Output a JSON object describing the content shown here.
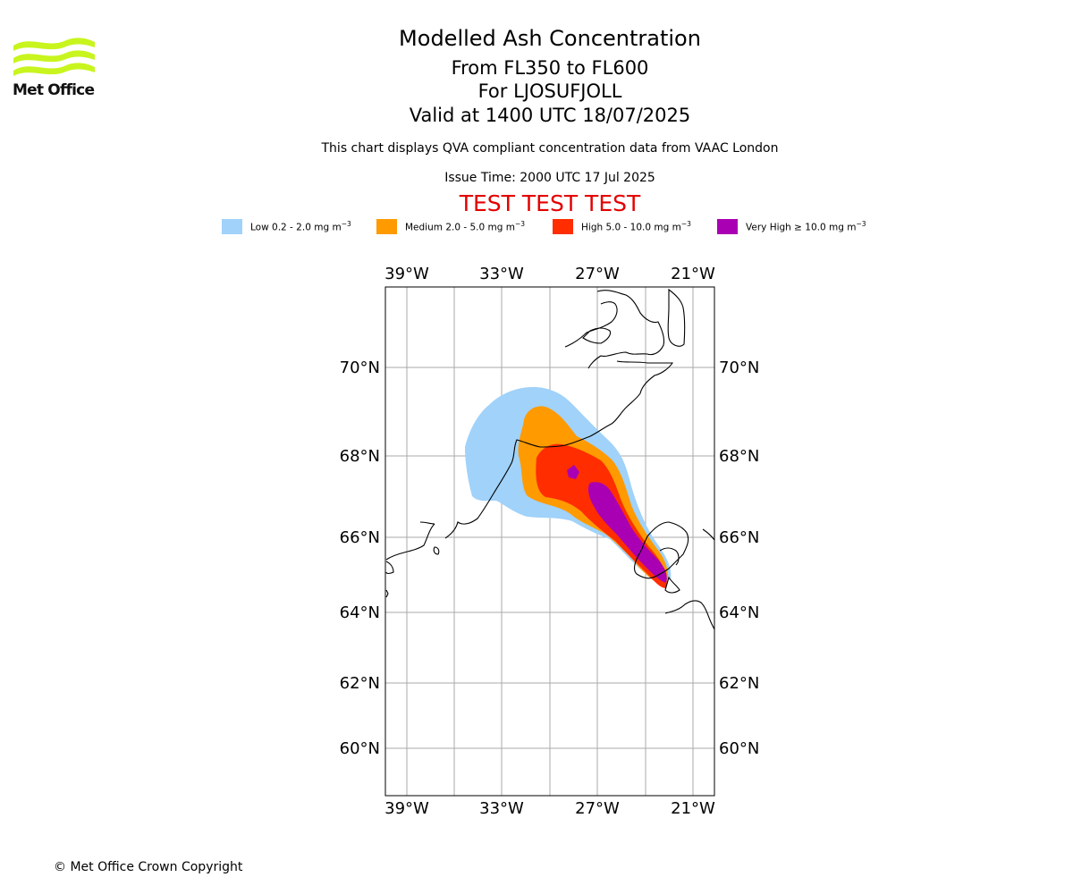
{
  "header": {
    "logo_text": "Met Office",
    "title": "Modelled Ash Concentration",
    "range": "From FL350 to FL600",
    "location": "For LJOSUFJOLL",
    "valid": "Valid at 1400 UTC 18/07/2025",
    "description": "This chart displays QVA compliant concentration data from VAAC London",
    "issue_time": "Issue Time: 2000 UTC 17 Jul 2025",
    "test_banner": "TEST TEST TEST"
  },
  "legend": [
    {
      "label": "Low 0.2 - 2.0 mg m",
      "sup": "−3",
      "color": "#a0d2fa"
    },
    {
      "label": "Medium 2.0 - 5.0 mg m",
      "sup": "−3",
      "color": "#ff9a00"
    },
    {
      "label": "High 5.0 - 10.0 mg m",
      "sup": "−3",
      "color": "#ff2d00"
    },
    {
      "label": "Very High  ≥  10.0 mg m",
      "sup": "−3",
      "color": "#aa00b4"
    }
  ],
  "map": {
    "lon_labels": [
      "39°W",
      "33°W",
      "27°W",
      "21°W"
    ],
    "lat_labels": [
      "70°N",
      "68°N",
      "66°N",
      "64°N",
      "62°N",
      "60°N"
    ],
    "gridline_color": "#aaaaaa",
    "coast_color": "#000000"
  },
  "footer": {
    "copyright": "© Met Office Crown Copyright"
  }
}
